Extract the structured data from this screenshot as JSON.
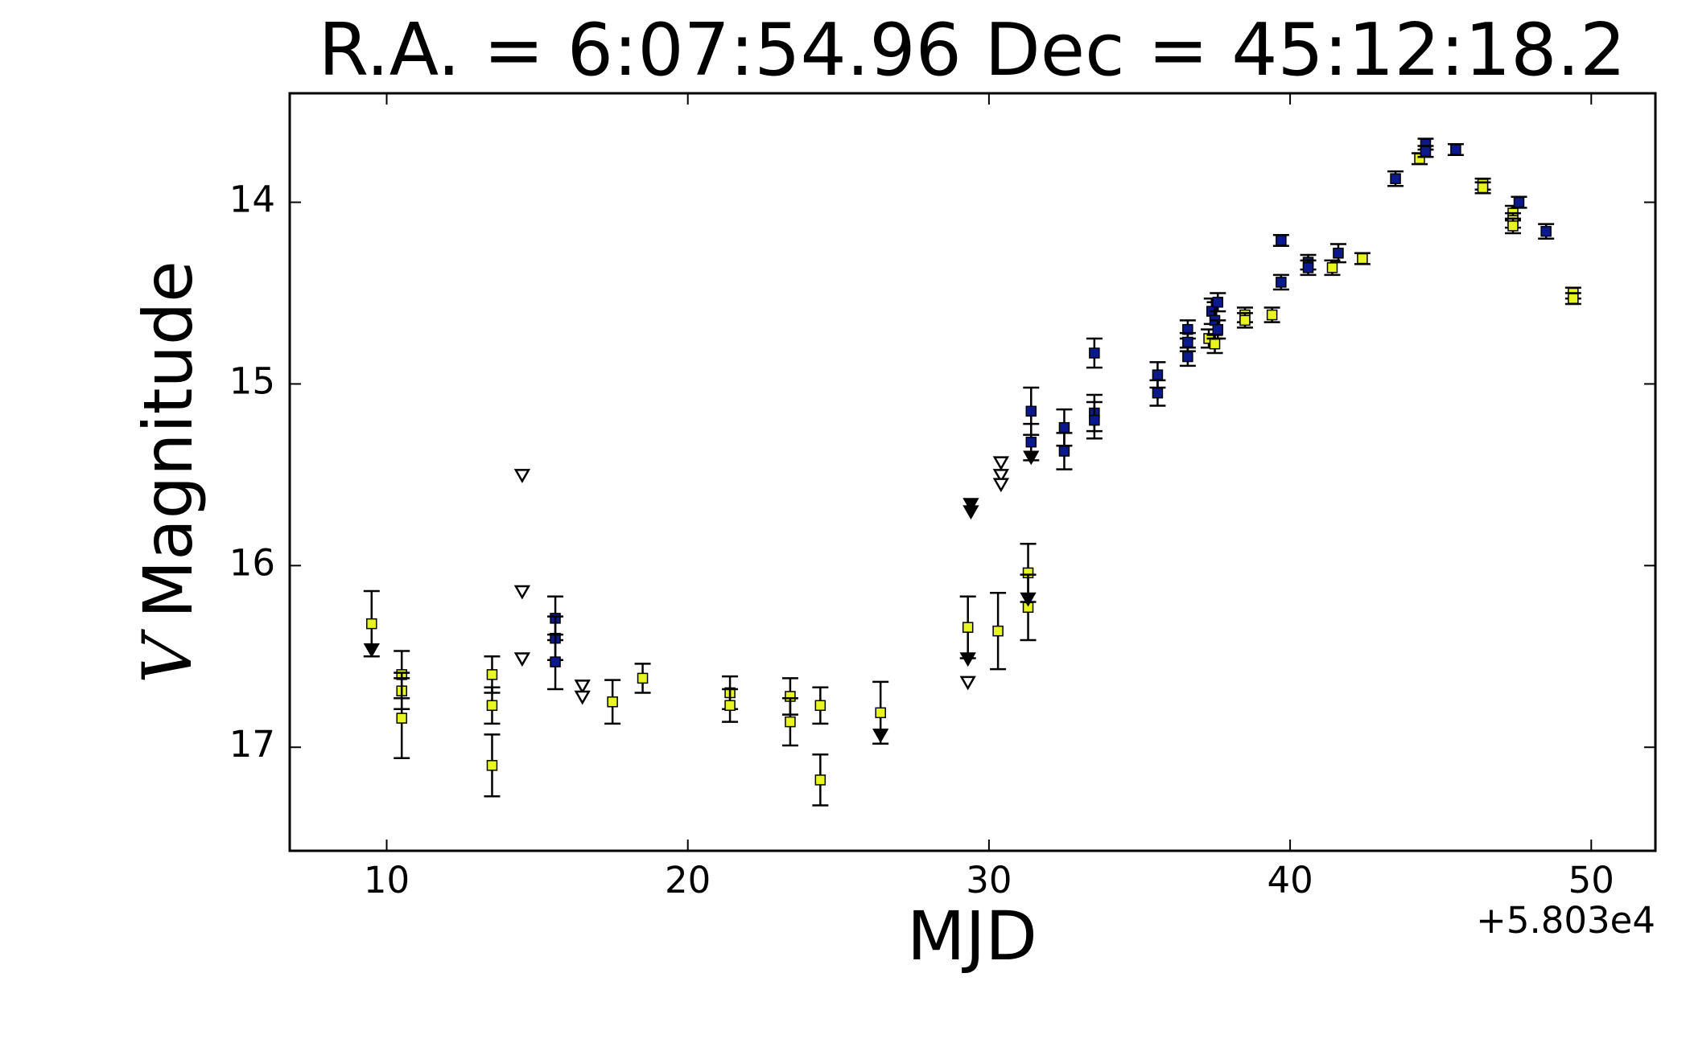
{
  "chart_data": {
    "type": "scatter",
    "title": "R.A. = 6:07:54.96   Dec = 45:12:18.2",
    "x_label": "MJD",
    "x_offset_label": "+5.803e4",
    "y_label_variable": "V",
    "y_label": "Magnitude",
    "xlim": [
      6.78,
      52.13
    ],
    "ylim": [
      17.57,
      13.4
    ],
    "xticks": [
      10,
      20,
      30,
      40,
      50
    ],
    "yticks": [
      14,
      15,
      16,
      17
    ],
    "series": [
      {
        "color": "#e8f520",
        "marker": "square",
        "x": [
          9.5,
          10.5,
          10.5,
          10.5,
          13.5,
          13.5,
          13.5,
          17.5,
          18.5,
          21.4,
          21.4,
          23.4,
          23.4,
          24.4,
          24.4,
          26.4,
          29.3,
          30.3,
          31.3,
          31.3,
          37.3,
          37.5,
          38.5,
          38.5,
          39.4,
          41.4,
          42.4,
          44.3,
          46.4,
          46.4,
          47.4,
          47.4,
          47.4,
          49.4,
          49.4
        ],
        "values": [
          16.32,
          16.6,
          16.69,
          16.84,
          16.6,
          16.77,
          17.1,
          16.75,
          16.62,
          16.7,
          16.77,
          16.72,
          16.86,
          16.77,
          17.18,
          16.81,
          16.34,
          16.36,
          16.04,
          16.23,
          14.75,
          14.78,
          14.62,
          14.65,
          14.62,
          14.36,
          14.31,
          13.76,
          13.9,
          13.92,
          14.06,
          14.1,
          14.13,
          14.5,
          14.53
        ],
        "errors": [
          0.18,
          0.13,
          0.1,
          0.22,
          0.1,
          0.1,
          0.17,
          0.12,
          0.08,
          0.09,
          0.09,
          0.1,
          0.13,
          0.1,
          0.14,
          0.17,
          0.17,
          0.21,
          0.16,
          0.18,
          0.05,
          0.05,
          0.04,
          0.04,
          0.04,
          0.04,
          0.03,
          0.03,
          0.03,
          0.03,
          0.04,
          0.04,
          0.04,
          0.03,
          0.03
        ]
      },
      {
        "color": "#0a1a8c",
        "marker": "square",
        "x": [
          15.6,
          15.6,
          15.6,
          31.4,
          31.4,
          32.5,
          32.5,
          33.5,
          33.5,
          33.5,
          35.6,
          35.6,
          36.6,
          36.6,
          36.6,
          37.4,
          37.5,
          37.6,
          37.6,
          39.7,
          39.7,
          40.6,
          40.6,
          41.6,
          43.5,
          44.5,
          44.5,
          45.5,
          47.6,
          48.5
        ],
        "values": [
          16.29,
          16.4,
          16.53,
          15.15,
          15.32,
          15.24,
          15.37,
          14.83,
          15.16,
          15.2,
          14.95,
          15.05,
          14.7,
          14.77,
          14.85,
          14.6,
          14.65,
          14.55,
          14.7,
          14.21,
          14.44,
          14.33,
          14.36,
          14.28,
          13.87,
          13.68,
          13.72,
          13.71,
          14.0,
          14.16
        ],
        "errors": [
          0.12,
          0.12,
          0.15,
          0.13,
          0.1,
          0.1,
          0.1,
          0.08,
          0.1,
          0.1,
          0.07,
          0.07,
          0.05,
          0.05,
          0.05,
          0.07,
          0.1,
          0.05,
          0.05,
          0.03,
          0.04,
          0.04,
          0.04,
          0.05,
          0.04,
          0.03,
          0.03,
          0.03,
          0.03,
          0.04
        ]
      },
      {
        "color": "#ffffff",
        "marker": "triangle-down",
        "x": [
          14.5,
          14.5,
          14.5,
          16.5,
          16.5,
          29.3,
          30.4,
          30.4,
          30.4
        ],
        "values": [
          15.5,
          16.14,
          16.51,
          16.66,
          16.72,
          16.64,
          15.43,
          15.5,
          15.55
        ]
      },
      {
        "color": "#000000",
        "marker": "triangle-down",
        "x": [
          9.5,
          26.4,
          29.3,
          29.4,
          29.4,
          31.4,
          31.3
        ],
        "values": [
          16.46,
          16.93,
          16.51,
          15.66,
          15.7,
          15.4,
          16.18
        ]
      }
    ]
  }
}
